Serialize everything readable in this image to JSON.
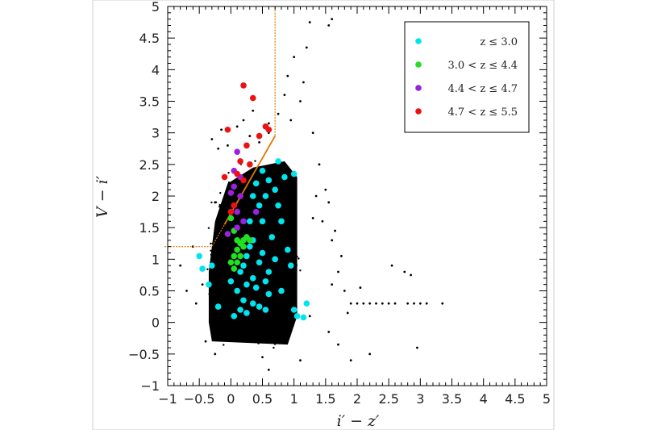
{
  "chart_data": {
    "type": "scatter",
    "title": "",
    "xlabel": "i′ − z′",
    "ylabel": "V − i′",
    "xlim": [
      -1,
      5
    ],
    "ylim": [
      -1,
      5
    ],
    "xticks": [
      -1,
      -0.5,
      0,
      0.5,
      1,
      1.5,
      2,
      2.5,
      3,
      3.5,
      4,
      4.5,
      5
    ],
    "yticks": [
      -1,
      -0.5,
      0,
      0.5,
      1,
      1.5,
      2,
      2.5,
      3,
      3.5,
      4,
      4.5,
      5
    ],
    "xtick_labels": [
      "−1",
      "−0.5",
      "0",
      "0.5",
      "1",
      "1.5",
      "2",
      "2.5",
      "3",
      "3.5",
      "4",
      "4.5",
      "5"
    ],
    "ytick_labels": [
      "−1",
      "−0.5",
      "0",
      "0.5",
      "1",
      "1.5",
      "2",
      "2.5",
      "3",
      "3.5",
      "4",
      "4.5",
      "5"
    ],
    "grid": false,
    "legend_position": "top-right",
    "background_points": {
      "color": "#000000",
      "description_note": "",
      "dense_region": {
        "x_range": [
          -0.35,
          1.05
        ],
        "y_range": [
          -0.35,
          2.6
        ]
      },
      "points": [
        [
          -0.6,
          1.2
        ],
        [
          -0.8,
          0.9
        ],
        [
          -0.45,
          0.6
        ],
        [
          -0.55,
          0.3
        ],
        [
          -0.7,
          0.5
        ],
        [
          -0.3,
          2.9
        ],
        [
          -0.15,
          3.05
        ],
        [
          -0.2,
          2.75
        ],
        [
          0.1,
          3.1
        ],
        [
          0.3,
          2.95
        ],
        [
          0.45,
          2.85
        ],
        [
          0.6,
          3.0
        ],
        [
          0.75,
          3.3
        ],
        [
          0.85,
          3.6
        ],
        [
          0.9,
          3.9
        ],
        [
          1.0,
          4.2
        ],
        [
          1.2,
          4.35
        ],
        [
          1.1,
          3.5
        ],
        [
          0.95,
          3.2
        ],
        [
          1.25,
          4.75
        ],
        [
          1.55,
          4.7
        ],
        [
          1.6,
          4.8
        ],
        [
          1.15,
          3.8
        ],
        [
          1.3,
          3.0
        ],
        [
          1.4,
          2.5
        ],
        [
          1.5,
          2.1
        ],
        [
          1.45,
          1.6
        ],
        [
          1.6,
          1.3
        ],
        [
          1.7,
          0.8
        ],
        [
          1.8,
          0.5
        ],
        [
          1.9,
          0.3
        ],
        [
          2.0,
          0.3
        ],
        [
          2.1,
          0.3
        ],
        [
          2.2,
          0.3
        ],
        [
          2.3,
          0.3
        ],
        [
          2.4,
          0.3
        ],
        [
          2.5,
          0.3
        ],
        [
          2.6,
          0.3
        ],
        [
          2.8,
          0.3
        ],
        [
          2.9,
          0.3
        ],
        [
          3.0,
          0.3
        ],
        [
          3.1,
          0.3
        ],
        [
          3.35,
          0.3
        ],
        [
          2.55,
          0.9
        ],
        [
          2.75,
          0.8
        ],
        [
          2.85,
          0.75
        ],
        [
          2.95,
          -0.4
        ],
        [
          2.2,
          -0.5
        ],
        [
          1.9,
          -0.6
        ],
        [
          1.7,
          -0.35
        ],
        [
          1.6,
          0.6
        ],
        [
          1.75,
          1.05
        ],
        [
          1.85,
          0.15
        ],
        [
          2.05,
          0.55
        ],
        [
          1.55,
          -0.15
        ],
        [
          -0.4,
          -0.3
        ],
        [
          -0.25,
          -0.5
        ],
        [
          0.5,
          -0.55
        ],
        [
          1.1,
          -0.6
        ],
        [
          0.6,
          -0.75
        ],
        [
          1.3,
          1.65
        ],
        [
          1.55,
          1.9
        ],
        [
          1.65,
          1.45
        ],
        [
          1.35,
          2.0
        ],
        [
          1.25,
          0.1
        ],
        [
          0.6,
          3.15
        ],
        [
          0.35,
          3.35
        ],
        [
          0.2,
          3.2
        ],
        [
          -0.05,
          2.8
        ],
        [
          -0.25,
          1.9
        ]
      ]
    },
    "series": [
      {
        "name": "z ≤ 3.0",
        "color": "#00e5ee",
        "values": [
          [
            -0.5,
            1.05
          ],
          [
            -0.45,
            0.85
          ],
          [
            -0.35,
            0.6
          ],
          [
            -0.2,
            0.25
          ],
          [
            0.1,
            0.5
          ],
          [
            0.15,
            0.8
          ],
          [
            0.2,
            0.9
          ],
          [
            0.25,
            1.05
          ],
          [
            0.3,
            1.2
          ],
          [
            0.35,
            0.7
          ],
          [
            0.4,
            0.55
          ],
          [
            0.45,
            0.95
          ],
          [
            0.5,
            1.1
          ],
          [
            0.55,
            0.65
          ],
          [
            0.6,
            0.45
          ],
          [
            0.65,
            1.35
          ],
          [
            0.5,
            1.6
          ],
          [
            0.45,
            1.85
          ],
          [
            0.55,
            2.0
          ],
          [
            0.6,
            2.25
          ],
          [
            0.7,
            2.1
          ],
          [
            0.75,
            1.85
          ],
          [
            0.8,
            1.6
          ],
          [
            0.85,
            2.3
          ],
          [
            1.0,
            2.35
          ],
          [
            0.9,
            1.15
          ],
          [
            0.95,
            0.9
          ],
          [
            1.0,
            0.2
          ],
          [
            1.05,
            0.1
          ],
          [
            1.15,
            0.08
          ],
          [
            1.2,
            0.3
          ],
          [
            0.35,
            0.3
          ],
          [
            0.25,
            0.15
          ],
          [
            0.05,
            0.1
          ],
          [
            0.0,
            0.65
          ],
          [
            0.3,
            1.6
          ],
          [
            0.35,
            2.0
          ],
          [
            0.4,
            2.2
          ],
          [
            0.5,
            2.4
          ],
          [
            0.75,
            2.55
          ],
          [
            0.2,
            0.35
          ],
          [
            0.45,
            0.25
          ],
          [
            0.55,
            0.2
          ],
          [
            0.7,
            1.0
          ],
          [
            0.8,
            0.5
          ],
          [
            0.25,
            0.6
          ],
          [
            0.35,
            1.3
          ],
          [
            0.6,
            0.8
          ],
          [
            0.15,
            0.2
          ],
          [
            -0.3,
            0.9
          ]
        ]
      },
      {
        "name": "3.0 < z ≤ 4.4",
        "color": "#22e022",
        "values": [
          [
            0.0,
            0.95
          ],
          [
            0.05,
            1.05
          ],
          [
            0.1,
            1.15
          ],
          [
            0.15,
            1.25
          ],
          [
            0.2,
            1.3
          ],
          [
            0.25,
            1.35
          ],
          [
            0.15,
            1.05
          ],
          [
            0.05,
            0.85
          ],
          [
            0.1,
            0.95
          ],
          [
            0.2,
            1.2
          ],
          [
            0.0,
            1.65
          ],
          [
            0.05,
            1.45
          ],
          [
            0.3,
            1.3
          ],
          [
            0.1,
            1.3
          ]
        ]
      },
      {
        "name": "4.4 < z ≤ 4.7",
        "color": "#9922dd",
        "values": [
          [
            0.1,
            2.7
          ],
          [
            0.05,
            2.4
          ],
          [
            0.15,
            2.3
          ],
          [
            0.0,
            2.05
          ],
          [
            0.1,
            1.75
          ],
          [
            0.15,
            2.0
          ],
          [
            0.05,
            2.15
          ],
          [
            0.4,
            1.75
          ],
          [
            -0.05,
            1.4
          ],
          [
            0.1,
            1.5
          ],
          [
            0.2,
            1.6
          ]
        ]
      },
      {
        "name": "4.7 < z ≤ 5.5",
        "color": "#ee1111",
        "values": [
          [
            0.2,
            3.75
          ],
          [
            0.35,
            3.55
          ],
          [
            -0.05,
            3.05
          ],
          [
            0.55,
            3.1
          ],
          [
            0.6,
            3.05
          ],
          [
            0.45,
            2.95
          ],
          [
            0.25,
            2.8
          ],
          [
            0.15,
            2.55
          ],
          [
            0.1,
            2.35
          ],
          [
            -0.1,
            2.3
          ],
          [
            0.2,
            2.25
          ],
          [
            0.0,
            1.75
          ],
          [
            0.05,
            1.85
          ],
          [
            0.3,
            2.5
          ]
        ]
      }
    ],
    "selection_lines": {
      "color": "#e07800",
      "boundary": [
        [
          -1.05,
          1.2
        ],
        [
          -0.3,
          1.2
        ],
        [
          0.7,
          2.95
        ],
        [
          0.7,
          5.0
        ]
      ],
      "solid_segment": [
        [
          -0.1,
          1.55
        ],
        [
          0.7,
          2.95
        ]
      ]
    }
  }
}
